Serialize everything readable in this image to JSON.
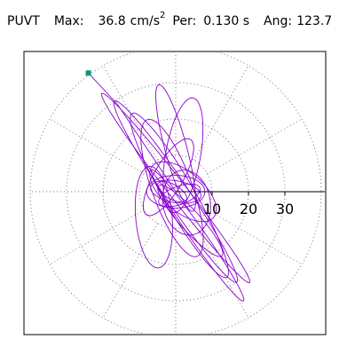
{
  "header": {
    "station": "PUVT",
    "max_label": "Max:",
    "max_value": "36.8",
    "max_unit": "cm/s",
    "max_unit_sup": "2",
    "per_label": "Per:",
    "per_value": "0.130 s",
    "ang_label": "Ang:",
    "ang_value": "123.7"
  },
  "colors": {
    "trace": "#8800cc",
    "start_marker": "#009977",
    "grid": "#777777",
    "axis": "#000000"
  },
  "chart_data": {
    "type": "scatter",
    "title": "",
    "xlabel": "",
    "ylabel": "",
    "radial_ticks": [
      10,
      20,
      30
    ],
    "radial_labels": [
      "10",
      "20",
      "30"
    ],
    "ring_radii": [
      10,
      20,
      30,
      40
    ],
    "spoke_angles_deg": [
      0,
      30,
      60,
      90,
      120,
      150,
      180,
      210,
      240,
      270,
      300,
      330
    ],
    "units": "cm/s2",
    "start_point": {
      "x": -24,
      "y": 32.6
    },
    "trajectory_note": "particle motion trace (approximate)"
  }
}
